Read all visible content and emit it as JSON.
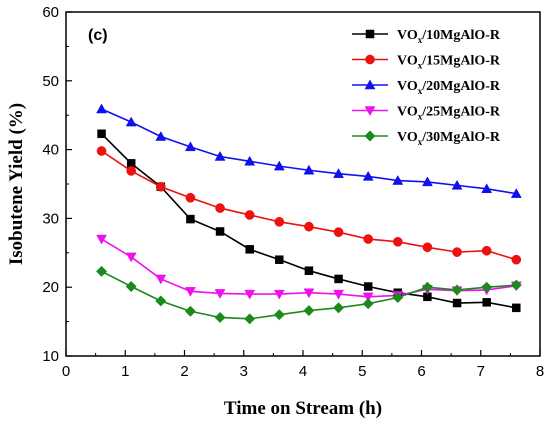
{
  "chart_data": {
    "type": "line",
    "panel_label": "(c)",
    "xlabel": "Time on Stream (h)",
    "ylabel": "Isobutene Yield (%)",
    "xlim": [
      0,
      8
    ],
    "ylim": [
      10,
      60
    ],
    "xticks": [
      0,
      1,
      2,
      3,
      4,
      5,
      6,
      7,
      8
    ],
    "yticks": [
      10,
      20,
      30,
      40,
      50,
      60
    ],
    "grid": false,
    "legend_position": "top-right",
    "x": [
      0.6,
      1.1,
      1.6,
      2.1,
      2.6,
      3.1,
      3.6,
      4.1,
      4.6,
      5.1,
      5.6,
      6.1,
      6.6,
      7.1,
      7.6
    ],
    "series": [
      {
        "name_parts": [
          "VO",
          "x",
          "/10MgAlO-R"
        ],
        "color": "#000000",
        "marker": "square",
        "values": [
          42.3,
          38.0,
          34.6,
          29.9,
          28.1,
          25.5,
          24.0,
          22.4,
          21.2,
          20.1,
          19.2,
          18.6,
          17.7,
          17.8,
          17.0
        ]
      },
      {
        "name_parts": [
          "VO",
          "x",
          "/15MgAlO-R"
        ],
        "color": "#ee1111",
        "marker": "circle",
        "values": [
          39.8,
          36.9,
          34.6,
          33.0,
          31.5,
          30.5,
          29.5,
          28.8,
          28.0,
          27.0,
          26.6,
          25.8,
          25.1,
          25.3,
          24.0
        ]
      },
      {
        "name_parts": [
          "VO",
          "x",
          "/20MgAlO-R"
        ],
        "color": "#1010ee",
        "marker": "triangle-up",
        "values": [
          45.9,
          44.0,
          41.9,
          40.4,
          39.0,
          38.3,
          37.6,
          37.0,
          36.5,
          36.1,
          35.5,
          35.3,
          34.8,
          34.3,
          33.6
        ]
      },
      {
        "name_parts": [
          "VO",
          "x",
          "/25MgAlO-R"
        ],
        "color": "#ee11ee",
        "marker": "triangle-down",
        "values": [
          27.0,
          24.4,
          21.2,
          19.4,
          19.1,
          19.0,
          19.0,
          19.2,
          19.0,
          18.6,
          18.8,
          19.7,
          19.5,
          19.6,
          20.2
        ]
      },
      {
        "name_parts": [
          "VO",
          "x",
          "/30MgAlO-R"
        ],
        "color": "#1a8a1a",
        "marker": "diamond",
        "values": [
          22.3,
          20.1,
          18.0,
          16.5,
          15.6,
          15.4,
          16.0,
          16.6,
          17.0,
          17.6,
          18.5,
          20.0,
          19.6,
          20.0,
          20.3
        ]
      }
    ]
  }
}
